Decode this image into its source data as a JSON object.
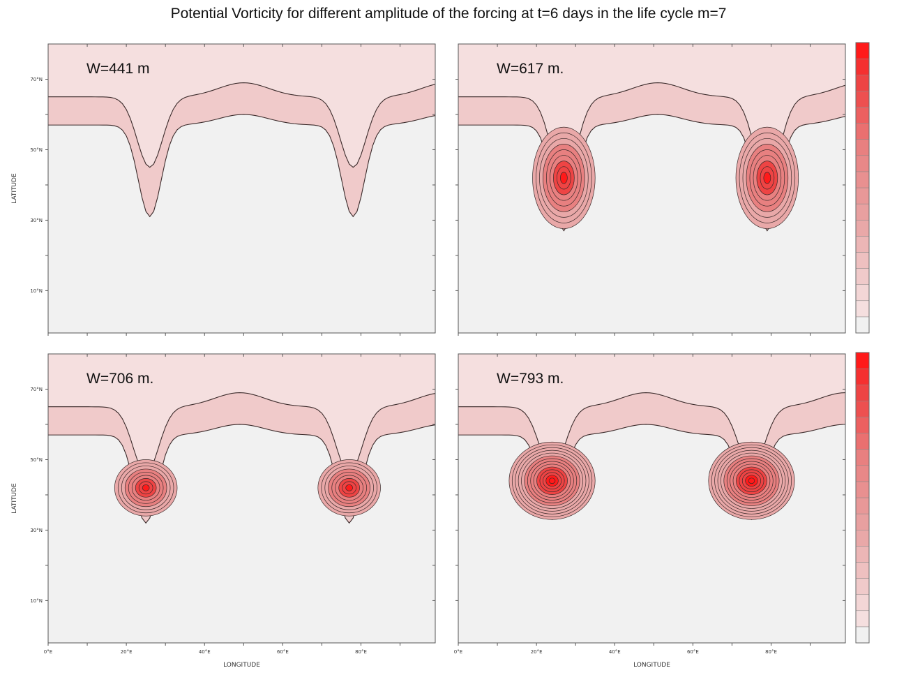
{
  "title": "Potential Vorticity for different amplitude of the forcing at t=6 days in the life cycle m=7",
  "colors": {
    "background": "#f1f1f1",
    "outer_band": "#f5dfdf",
    "inner_band": "#f0caca",
    "core_light": "#e9a8a8",
    "core_mid": "#e88080",
    "core_strong": "#ee4444",
    "core_max": "#ff1a1a",
    "contour": "#3a2a2a"
  },
  "chart_data": [
    {
      "type": "heatmap",
      "panel_label": "W=441 m",
      "position": "top-left",
      "ylabel": "LATITUDE",
      "xlabel": "",
      "y_ticks": [
        "70°N",
        "50°N",
        "30°N",
        "10°N"
      ],
      "x_ticks": [],
      "ylim": [
        -2,
        80
      ],
      "xlim": [
        0,
        99
      ],
      "trough_longitudes": [
        26,
        78
      ],
      "trough_tip_latitude": 31,
      "vortex_center_latitude": null,
      "colorbar": false
    },
    {
      "type": "heatmap",
      "panel_label": "W=617 m.",
      "position": "top-right",
      "ylabel": "",
      "xlabel": "",
      "y_ticks": [],
      "x_ticks": [],
      "ylim": [
        -2,
        80
      ],
      "xlim": [
        0,
        99
      ],
      "trough_longitudes": [
        27,
        79
      ],
      "trough_tip_latitude": 27,
      "vortex_center_latitude": 42,
      "colorbar": true
    },
    {
      "type": "heatmap",
      "panel_label": "W=706 m.",
      "position": "bottom-left",
      "ylabel": "LATITUDE",
      "xlabel": "LONGITUDE",
      "y_ticks": [
        "70°N",
        "50°N",
        "30°N",
        "10°N"
      ],
      "x_ticks": [
        "0°E",
        "20°E",
        "40°E",
        "60°E",
        "80°E"
      ],
      "ylim": [
        -2,
        80
      ],
      "xlim": [
        0,
        99
      ],
      "trough_longitudes": [
        25,
        77
      ],
      "trough_tip_latitude": 32,
      "vortex_center_latitude": 42,
      "colorbar": false
    },
    {
      "type": "heatmap",
      "panel_label": "W=793 m.",
      "position": "bottom-right",
      "ylabel": "",
      "xlabel": "LONGITUDE",
      "y_ticks": [],
      "x_ticks": [
        "0°E",
        "20°E",
        "40°E",
        "60°E",
        "80°E"
      ],
      "ylim": [
        -2,
        80
      ],
      "xlim": [
        0,
        99
      ],
      "trough_longitudes": [
        24,
        75
      ],
      "trough_tip_latitude": 33,
      "vortex_center_latitude": 44,
      "colorbar": true
    }
  ]
}
